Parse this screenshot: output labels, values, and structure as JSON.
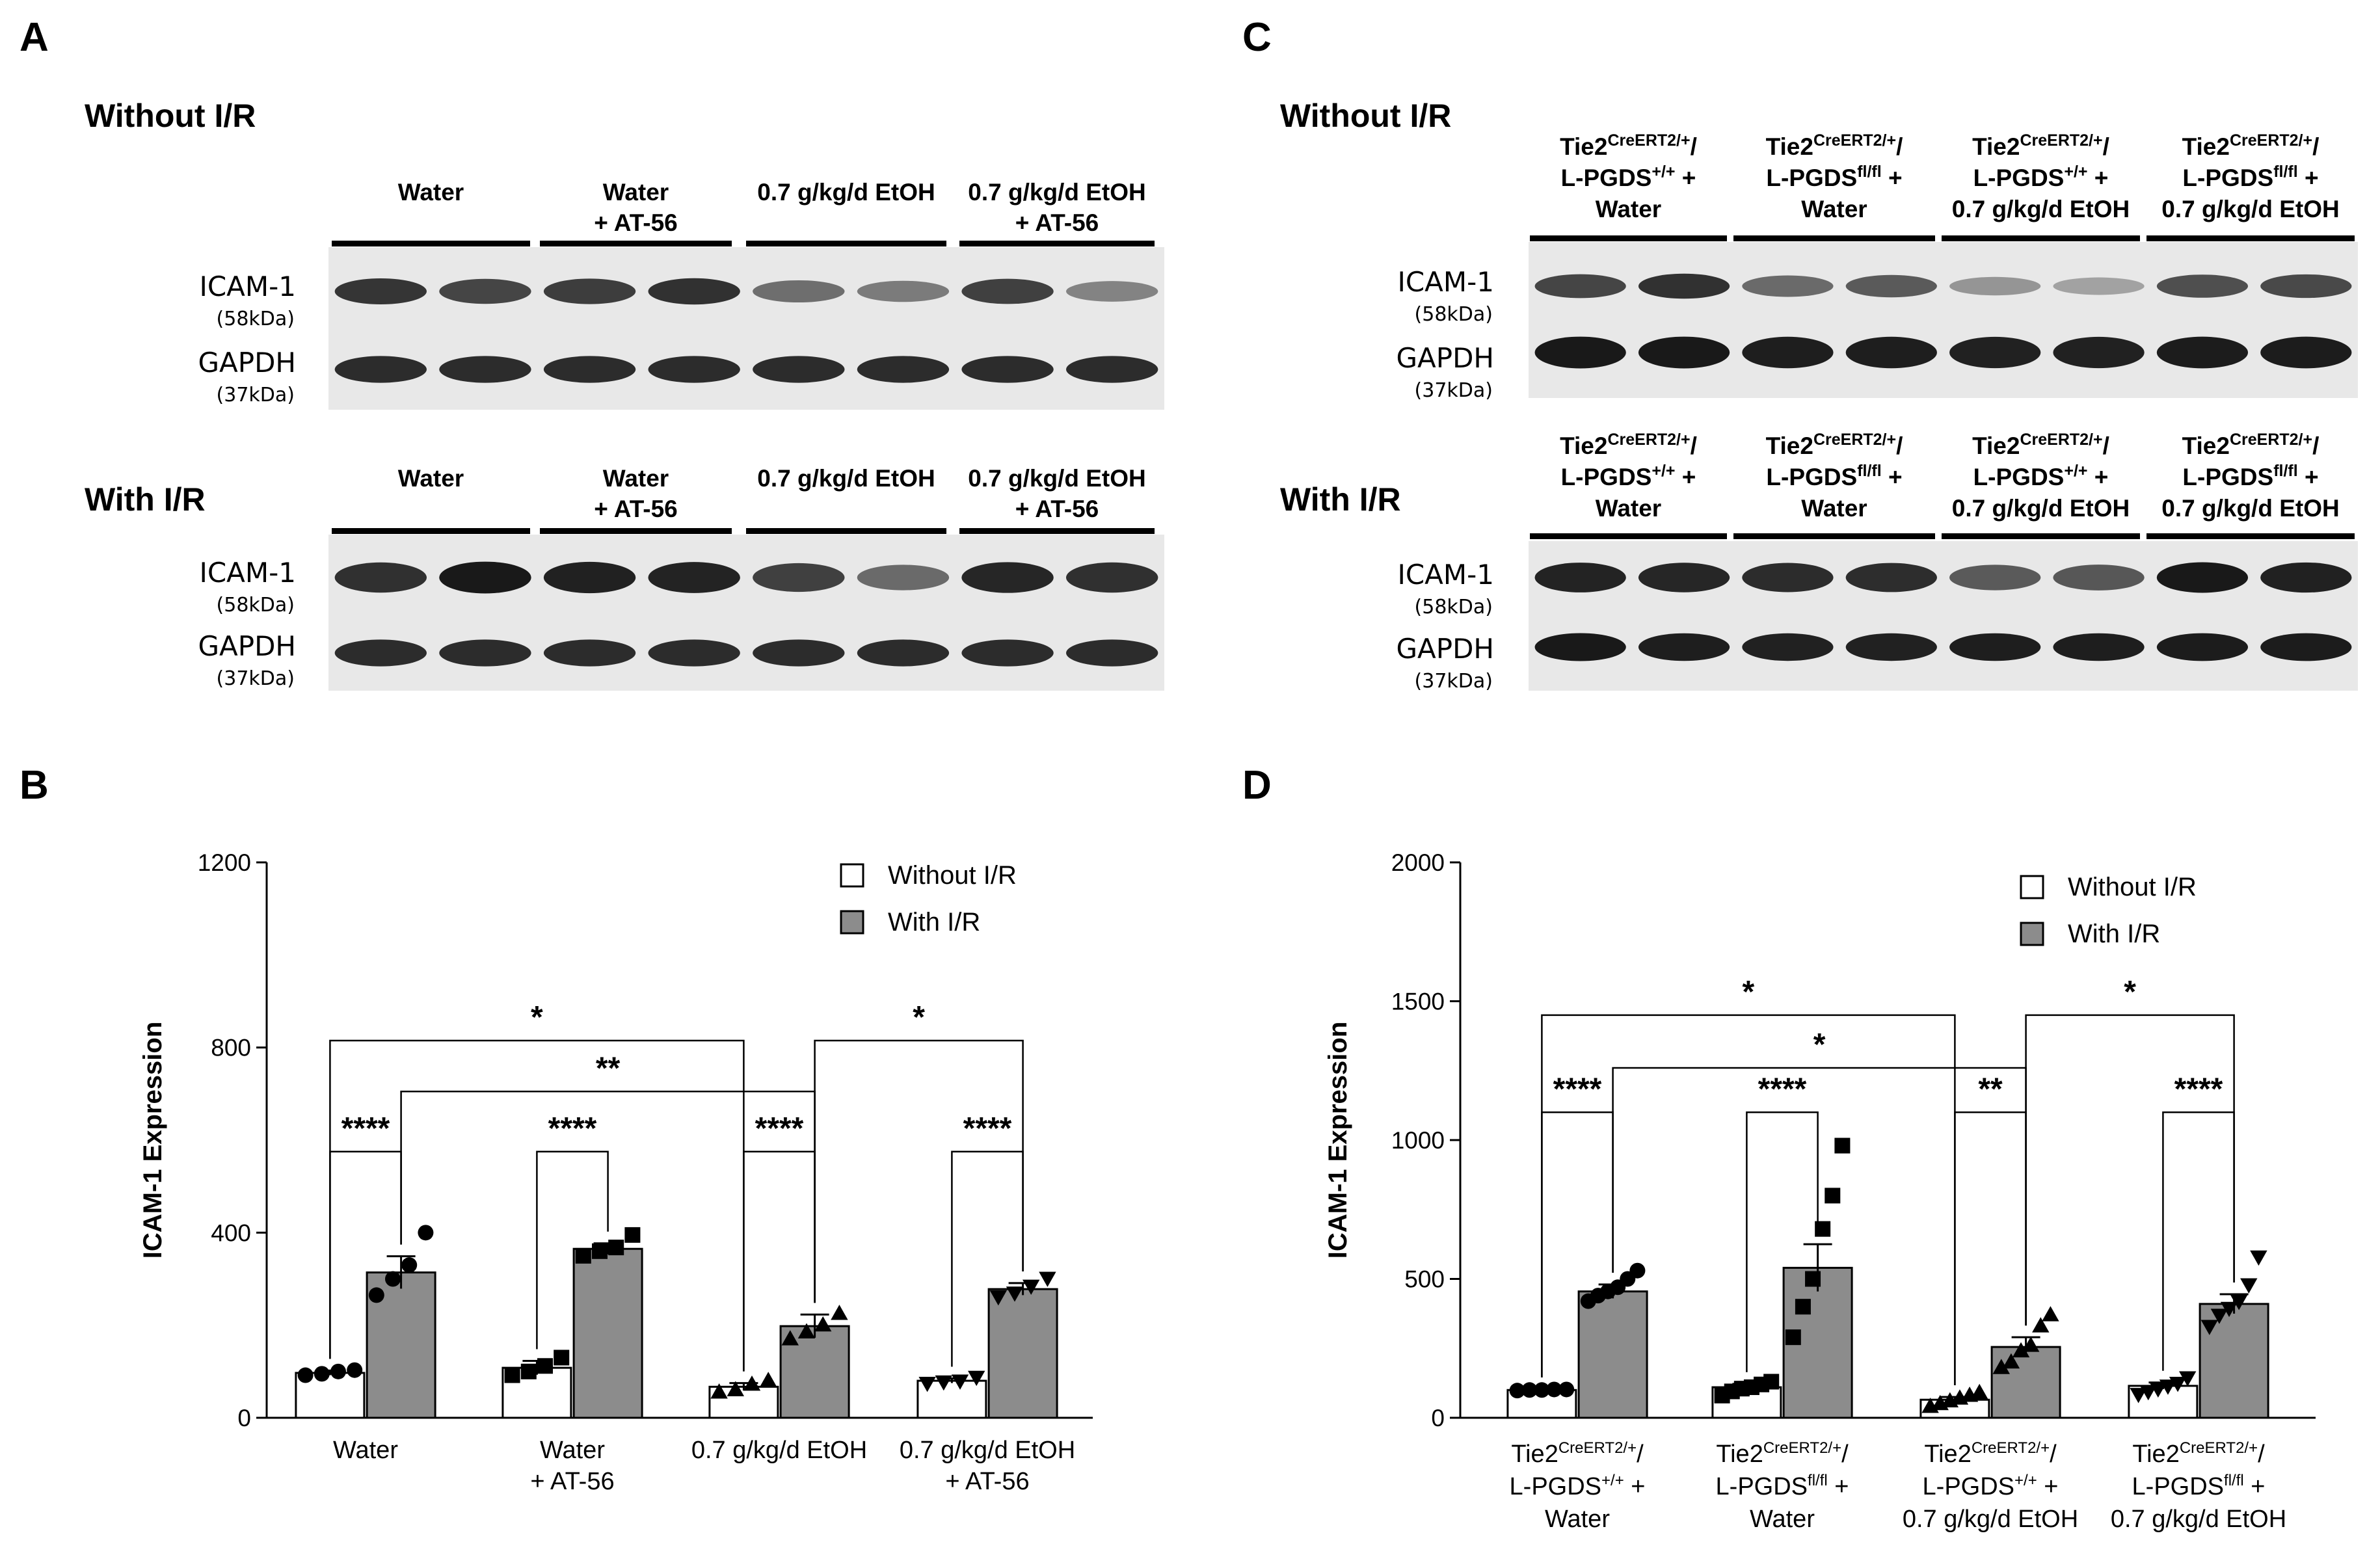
{
  "panel_letters": {
    "A": "A",
    "B": "B",
    "C": "C",
    "D": "D"
  },
  "blots": {
    "A": {
      "sections": [
        {
          "title": "Without I/R",
          "groups": [
            [
              "Water"
            ],
            [
              "Water",
              "+ AT-56"
            ],
            [
              "0.7  g/kg/d EtOH"
            ],
            [
              "0.7  g/kg/d EtOH",
              "+ AT-56"
            ]
          ],
          "bands": [
            {
              "protein": "ICAM-1",
              "kda": "(58kDa)",
              "intensity": [
                0.8,
                0.72,
                0.76,
                0.82,
                0.5,
                0.42,
                0.74,
                0.38
              ]
            },
            {
              "protein": "GAPDH",
              "kda": "(37kDa)",
              "intensity": [
                0.86,
                0.86,
                0.86,
                0.86,
                0.86,
                0.86,
                0.86,
                0.86
              ]
            }
          ]
        },
        {
          "title": "With I/R",
          "groups": [
            [
              "Water"
            ],
            [
              "Water",
              "+ AT-56"
            ],
            [
              "0.7  g/kg/d EtOH"
            ],
            [
              "0.7  g/kg/d EtOH",
              "+ AT-56"
            ]
          ],
          "bands": [
            {
              "protein": "ICAM-1",
              "kda": "(58kDa)",
              "intensity": [
                0.84,
                0.95,
                0.92,
                0.9,
                0.74,
                0.52,
                0.88,
                0.84
              ]
            },
            {
              "protein": "GAPDH",
              "kda": "(37kDa)",
              "intensity": [
                0.86,
                0.86,
                0.86,
                0.86,
                0.86,
                0.86,
                0.86,
                0.86
              ]
            }
          ]
        }
      ]
    },
    "C": {
      "sections": [
        {
          "title": "Without I/R",
          "groups": [
            [
              [
                "Tie2",
                "CreERT2/+",
                "/"
              ],
              [
                "L-PGDS",
                "+/+",
                " +"
              ],
              [
                "Water"
              ]
            ],
            [
              [
                "Tie2",
                "CreERT2/+",
                "/"
              ],
              [
                "L-PGDS",
                "fl/fl",
                " +"
              ],
              [
                "Water"
              ]
            ],
            [
              [
                "Tie2",
                "CreERT2/+",
                "/"
              ],
              [
                "L-PGDS",
                "+/+",
                " +"
              ],
              [
                "0.7  g/kg/d EtOH"
              ]
            ],
            [
              [
                "Tie2",
                "CreERT2/+",
                "/"
              ],
              [
                "L-PGDS",
                "fl/fl",
                " +"
              ],
              [
                "0.7  g/kg/d  EtOH"
              ]
            ]
          ],
          "bands": [
            {
              "protein": "ICAM-1",
              "kda": "(58kDa)",
              "intensity": [
                0.72,
                0.82,
                0.52,
                0.6,
                0.28,
                0.2,
                0.66,
                0.7
              ]
            },
            {
              "protein": "GAPDH",
              "kda": "(37kDa)",
              "intensity": [
                0.95,
                0.95,
                0.93,
                0.93,
                0.92,
                0.92,
                0.94,
                0.94
              ]
            }
          ]
        },
        {
          "title": "With I/R",
          "groups": [
            [
              [
                "Tie2",
                "CreERT2/+",
                "/"
              ],
              [
                "L-PGDS",
                "+/+",
                " +"
              ],
              [
                "Water"
              ]
            ],
            [
              [
                "Tie2",
                "CreERT2/+",
                "/"
              ],
              [
                "L-PGDS",
                "fl/fl",
                " +"
              ],
              [
                "Water"
              ]
            ],
            [
              [
                "Tie2",
                "CreERT2/+",
                "/"
              ],
              [
                "L-PGDS",
                "+/+",
                " +"
              ],
              [
                "0.7  g/kg/d EtOH"
              ]
            ],
            [
              [
                "Tie2",
                "CreERT2/+",
                "/"
              ],
              [
                "L-PGDS",
                "fl/fl",
                " +"
              ],
              [
                "0.7  g/kg/d  EtOH"
              ]
            ]
          ],
          "bands": [
            {
              "protein": "ICAM-1",
              "kda": "(58kDa)",
              "intensity": [
                0.9,
                0.88,
                0.86,
                0.85,
                0.6,
                0.62,
                0.95,
                0.92
              ]
            },
            {
              "protein": "GAPDH",
              "kda": "(37kDa)",
              "intensity": [
                0.95,
                0.93,
                0.92,
                0.92,
                0.93,
                0.93,
                0.94,
                0.94
              ]
            }
          ]
        }
      ]
    }
  },
  "chart_data": [
    {
      "panel": "B",
      "type": "bar",
      "ylabel": "ICAM-1 Expression",
      "ylim": [
        0,
        1200
      ],
      "yticks": [
        0,
        400,
        800,
        1200
      ],
      "categories": [
        [
          "Water"
        ],
        [
          "Water",
          "+ AT-56"
        ],
        [
          "0.7  g/kg/d  EtOH"
        ],
        [
          "0.7  g/kg/d  EtOH",
          "+ AT-56"
        ]
      ],
      "series": [
        {
          "name": "Without I/R",
          "color": "#ffffff",
          "values": [
            97,
            108,
            67,
            80
          ],
          "sem": [
            5,
            15,
            8,
            5
          ]
        },
        {
          "name": "With I/R",
          "color": "#8c8c8c",
          "values": [
            314,
            365,
            198,
            278
          ],
          "sem": [
            35,
            12,
            25,
            13
          ]
        }
      ],
      "points": {
        "Without I/R": [
          [
            92,
            95,
            100,
            103
          ],
          [
            92,
            100,
            112,
            130
          ],
          [
            55,
            60,
            72,
            80
          ],
          [
            75,
            78,
            80,
            88
          ]
        ],
        "With I/R": [
          [
            265,
            300,
            330,
            400
          ],
          [
            350,
            360,
            368,
            395
          ],
          [
            170,
            185,
            200,
            225
          ],
          [
            262,
            270,
            285,
            302
          ]
        ]
      },
      "markers": [
        "circle",
        "square",
        "triangle",
        "triangle-down"
      ],
      "significance": [
        {
          "from": [
            0,
            0
          ],
          "to": [
            0,
            1
          ],
          "label": "****",
          "y": 575
        },
        {
          "from": [
            1,
            0
          ],
          "to": [
            1,
            1
          ],
          "label": "****",
          "y": 575
        },
        {
          "from": [
            2,
            0
          ],
          "to": [
            2,
            1
          ],
          "label": "****",
          "y": 575
        },
        {
          "from": [
            3,
            0
          ],
          "to": [
            3,
            1
          ],
          "label": "****",
          "y": 575
        },
        {
          "from": [
            0,
            0
          ],
          "to": [
            2,
            0
          ],
          "label": "*",
          "y": 815
        },
        {
          "from": [
            0,
            1
          ],
          "to": [
            2,
            1
          ],
          "label": "**",
          "y": 705
        },
        {
          "from": [
            2,
            1
          ],
          "to": [
            3,
            1
          ],
          "label": "*",
          "y": 815
        }
      ],
      "legend": "top-right"
    },
    {
      "panel": "D",
      "type": "bar",
      "ylabel": "ICAM-1 Expression",
      "ylim": [
        0,
        2000
      ],
      "yticks": [
        0,
        500,
        1000,
        1500,
        2000
      ],
      "categories": [
        [
          [
            "Tie2",
            "CreERT2/+",
            "/"
          ],
          [
            "L-PGDS",
            "+/+",
            " +"
          ],
          [
            "Water"
          ]
        ],
        [
          [
            "Tie2",
            "CreERT2/+",
            "/"
          ],
          [
            "L-PGDS",
            "fl/fl",
            " +"
          ],
          [
            "Water"
          ]
        ],
        [
          [
            "Tie2",
            "CreERT2/+",
            "/"
          ],
          [
            "L-PGDS",
            "+/+",
            " +"
          ],
          [
            "0.7  g/kg/d  EtOH"
          ]
        ],
        [
          [
            "Tie2",
            "CreERT2/+",
            "/"
          ],
          [
            "L-PGDS",
            "fl/fl",
            " +"
          ],
          [
            "0.7  g/kg/d  EtOH"
          ]
        ]
      ],
      "series": [
        {
          "name": "Without I/R",
          "color": "#ffffff",
          "values": [
            100,
            110,
            65,
            115
          ],
          "sem": [
            3,
            12,
            10,
            12
          ]
        },
        {
          "name": "With I/R",
          "color": "#8c8c8c",
          "values": [
            455,
            540,
            255,
            410
          ],
          "sem": [
            25,
            85,
            35,
            35
          ]
        }
      ],
      "points": {
        "Without I/R": [
          [
            98,
            100,
            100,
            102,
            102
          ],
          [
            80,
            95,
            105,
            110,
            120,
            130
          ],
          [
            40,
            50,
            60,
            70,
            80,
            90
          ],
          [
            85,
            95,
            105,
            115,
            125,
            145
          ]
        ],
        "With I/R": [
          [
            420,
            440,
            455,
            470,
            500,
            530
          ],
          [
            290,
            400,
            500,
            680,
            800,
            980
          ],
          [
            180,
            200,
            240,
            260,
            330,
            370
          ],
          [
            330,
            370,
            395,
            420,
            480,
            580
          ]
        ]
      },
      "markers": [
        "circle",
        "square",
        "triangle",
        "triangle-down"
      ],
      "significance": [
        {
          "from": [
            0,
            0
          ],
          "to": [
            0,
            1
          ],
          "label": "****",
          "y": 1100
        },
        {
          "from": [
            1,
            0
          ],
          "to": [
            1,
            1
          ],
          "label": "****",
          "y": 1100
        },
        {
          "from": [
            2,
            0
          ],
          "to": [
            2,
            1
          ],
          "label": "**",
          "y": 1100
        },
        {
          "from": [
            3,
            0
          ],
          "to": [
            3,
            1
          ],
          "label": "****",
          "y": 1100
        },
        {
          "from": [
            0,
            0
          ],
          "to": [
            2,
            0
          ],
          "label": "*",
          "y": 1450
        },
        {
          "from": [
            0,
            1
          ],
          "to": [
            2,
            1
          ],
          "label": "*",
          "y": 1260
        },
        {
          "from": [
            2,
            1
          ],
          "to": [
            3,
            1
          ],
          "label": "*",
          "y": 1450
        }
      ],
      "legend": "top-right"
    }
  ]
}
